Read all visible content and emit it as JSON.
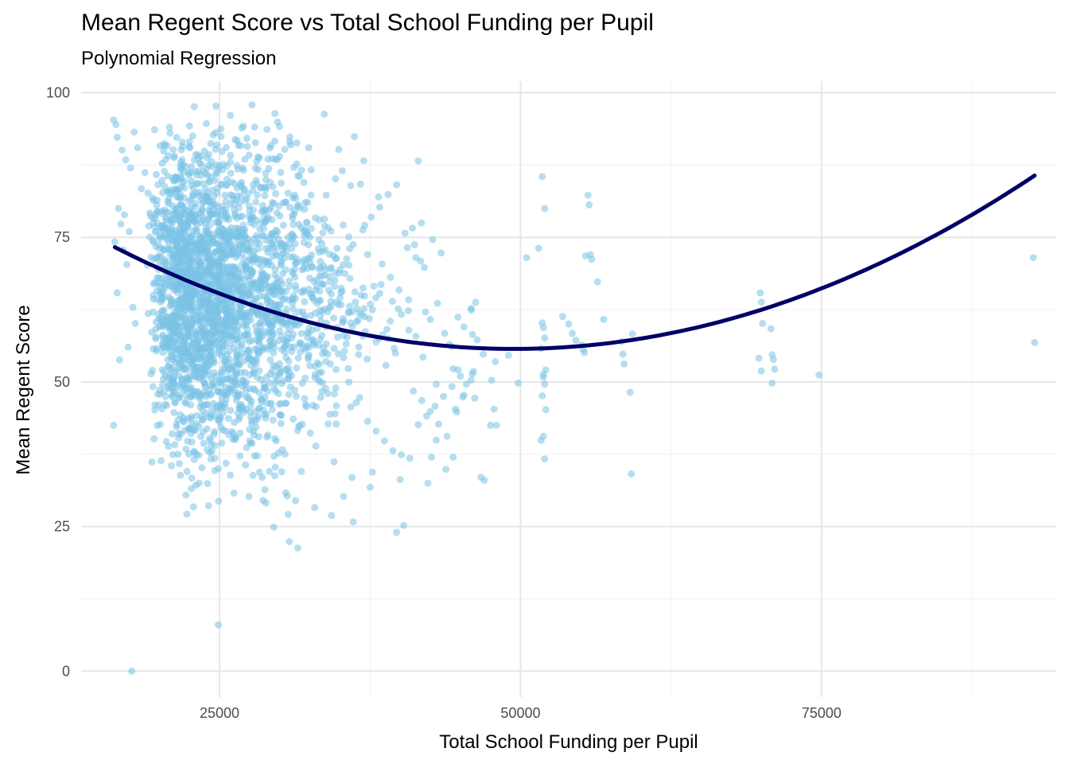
{
  "chart_data": {
    "type": "scatter",
    "title": "Mean Regent Score vs Total School Funding per Pupil",
    "subtitle": "Polynomial Regression",
    "xlabel": "Total School Funding per Pupil",
    "ylabel": "Mean Regent Score",
    "xlim": [
      13500,
      94500
    ],
    "ylim": [
      -4.5,
      102
    ],
    "x_ticks": [
      25000,
      50000,
      75000
    ],
    "x_tick_labels": [
      "25000",
      "50000",
      "75000"
    ],
    "y_ticks": [
      0,
      25,
      50,
      75,
      100
    ],
    "y_tick_labels": [
      "0",
      "25",
      "50",
      "75",
      "100"
    ],
    "grid": true,
    "legend": "none",
    "colors": {
      "points": "#7ac3e6",
      "fit_line": "#000066",
      "grid_major": "#e6e6e6",
      "grid_minor": "#f0f0f0"
    },
    "fit": {
      "type": "polynomial",
      "degree": 2,
      "x_range": [
        16300,
        92700
      ],
      "x": [
        16300,
        25000,
        37000,
        49500,
        60000,
        70000,
        80000,
        92700
      ],
      "y": [
        72.8,
        65.3,
        59.2,
        56.0,
        57.0,
        62.0,
        70.3,
        86.2
      ]
    },
    "series": [
      {
        "type": "scatter",
        "x": [
          16200,
          16400,
          16500,
          16900,
          17200,
          17600,
          17900,
          16600,
          17100,
          16800,
          17500,
          16300,
          17000,
          17300,
          16500,
          17800,
          18000,
          16200,
          17400,
          16700,
          18200,
          18800,
          19500,
          20100,
          20900,
          21600,
          22400,
          23100,
          23900,
          24600,
          25300,
          26100,
          26800,
          27500,
          28300,
          29000,
          29800,
          30500,
          31200,
          32000,
          19000,
          19800,
          20600,
          21300,
          22100,
          22800,
          23600,
          24300,
          25100,
          25800,
          26600,
          27300,
          28100,
          28800,
          29600,
          30300,
          31100,
          31800,
          32600,
          33300,
          20300,
          21100,
          21800,
          22600,
          23300,
          24100,
          24800,
          25600,
          26300,
          27100,
          27800,
          28600,
          29300,
          30100,
          30800,
          31600,
          32300,
          33100,
          33800,
          34600,
          18500,
          19200,
          20000,
          20700,
          21500,
          22200,
          23000,
          23700,
          24500,
          25200,
          26000,
          26700,
          27500,
          28200,
          29000,
          29700,
          30500,
          31200,
          32000,
          32700,
          21000,
          22500,
          24000,
          25500,
          27000,
          28500,
          30000,
          31500,
          33000,
          34500,
          36000,
          37500,
          35200,
          36700,
          38200,
          33500,
          35000,
          36500,
          38000,
          34200,
          19600,
          20400,
          21200,
          22000,
          22700,
          23500,
          24200,
          25000,
          25700,
          26500,
          27200,
          28000,
          28700,
          29500,
          30200,
          31000,
          31700,
          32500,
          33200,
          34000,
          35100,
          35800,
          36400,
          37100,
          37700,
          38300,
          38900,
          39500,
          40100,
          40700,
          41300,
          41900,
          42500,
          43100,
          43700,
          44300,
          44800,
          45300,
          45900,
          46400,
          38500,
          39200,
          39900,
          40600,
          41300,
          42000,
          42700,
          43400,
          44100,
          44800,
          45500,
          46200,
          46900,
          47600,
          36900,
          37600,
          38300,
          39000,
          39700,
          40400,
          41100,
          41800,
          42500,
          43200,
          43900,
          44600,
          45300,
          46000,
          37300,
          38000,
          38700,
          39400,
          40100,
          40800,
          41500,
          42200,
          42900,
          43600,
          44300,
          45000,
          22900,
          24700,
          25900,
          27700,
          29600,
          30900,
          32400,
          33700,
          34900,
          36200,
          24900,
          30800,
          31500,
          29500,
          39700,
          40300,
          34300,
          36100,
          41500,
          21000,
          23300,
          26200,
          28600,
          30700,
          32900,
          35300,
          37700,
          40000,
          42300,
          44400,
          17700,
          24900,
          47800,
          49000,
          49800,
          50500,
          51500,
          51800,
          51900,
          52000,
          51700,
          52100,
          51900,
          52000,
          51800,
          52100,
          51900,
          51700,
          52000,
          51800,
          53500,
          54000,
          54300,
          54600,
          55100,
          55200,
          55300,
          55400,
          55600,
          55700,
          55800,
          55900,
          56400,
          56900,
          58400,
          58500,
          58600,
          59100,
          59200,
          59300,
          69900,
          70000,
          70100,
          70800,
          70900,
          71000,
          71100,
          69800,
          70000,
          70900,
          74800,
          92600,
          92700,
          47900,
          46100,
          45900,
          46000,
          44400,
          43000,
          42100,
          52000,
          51900,
          45200,
          44700,
          48000,
          47500,
          46700,
          47000,
          43800,
          42600
        ],
        "y": [
          95.3,
          94.5,
          92.3,
          90.1,
          88.4,
          87.0,
          93.2,
          80.0,
          78.9,
          77.3,
          76.0,
          74.2,
          72.8,
          70.3,
          65.4,
          62.9,
          60.1,
          42.5,
          56.0,
          53.8,
          90.5,
          86.2,
          81.4,
          76.8,
          72.1,
          67.5,
          62.9,
          58.3,
          53.8,
          49.2,
          44.7,
          40.1,
          45.6,
          51.2,
          56.8,
          62.3,
          67.9,
          73.4,
          79.0,
          84.5,
          70.2,
          65.8,
          61.3,
          56.9,
          52.4,
          48.0,
          43.5,
          39.1,
          43.8,
          48.6,
          53.3,
          58.1,
          62.8,
          67.6,
          72.3,
          77.1,
          81.8,
          86.6,
          82.3,
          78.0,
          55.1,
          59.7,
          64.3,
          68.9,
          73.5,
          78.1,
          82.7,
          87.3,
          91.9,
          88.5,
          84.1,
          79.7,
          75.3,
          70.9,
          66.5,
          62.1,
          57.7,
          53.3,
          48.9,
          44.5,
          83.4,
          79.2,
          75.0,
          70.8,
          66.6,
          62.4,
          58.2,
          54.0,
          49.8,
          45.6,
          41.4,
          37.2,
          39.8,
          44.1,
          48.4,
          52.7,
          57.0,
          61.3,
          65.6,
          69.9,
          60.5,
          57.8,
          55.1,
          52.4,
          49.7,
          47.0,
          44.3,
          41.6,
          38.9,
          36.2,
          33.5,
          31.8,
          86.5,
          84.2,
          82.0,
          68.3,
          64.5,
          60.7,
          56.9,
          53.1,
          93.6,
          91.2,
          88.8,
          86.4,
          84.0,
          81.6,
          79.2,
          76.8,
          74.4,
          72.0,
          69.6,
          67.2,
          64.8,
          62.4,
          60.0,
          57.6,
          55.2,
          52.8,
          50.4,
          48.0,
          66.2,
          63.1,
          60.4,
          58.7,
          62.5,
          65.3,
          59.1,
          55.8,
          61.7,
          64.2,
          57.9,
          54.3,
          60.8,
          63.6,
          58.4,
          56.1,
          61.2,
          59.5,
          62.7,
          57.3,
          70.4,
          68.1,
          65.9,
          73.2,
          71.5,
          69.8,
          74.6,
          72.3,
          56.5,
          52.1,
          49.6,
          47.2,
          54.8,
          50.3,
          76.3,
          78.5,
          80.2,
          82.4,
          84.1,
          75.7,
          48.4,
          46.8,
          44.9,
          42.7,
          40.6,
          45.3,
          47.7,
          51.4,
          43.2,
          41.5,
          39.8,
          38.1,
          37.4,
          36.8,
          42.6,
          44.1,
          45.8,
          47.5,
          49.2,
          51.0,
          97.6,
          97.7,
          96.1,
          97.9,
          96.4,
          91.0,
          90.5,
          96.3,
          90.2,
          92.4,
          8.0,
          22.4,
          21.3,
          24.9,
          24.0,
          25.2,
          26.9,
          25.8,
          88.2,
          35.5,
          32.5,
          30.8,
          29.5,
          27.1,
          28.3,
          30.2,
          34.4,
          33.1,
          32.5,
          37.0,
          0.0,
          35.0,
          45.3,
          54.6,
          49.8,
          71.5,
          73.1,
          60.2,
          59.4,
          57.6,
          55.8,
          52.1,
          51.3,
          49.6,
          47.6,
          45.2,
          40.6,
          39.9,
          36.7,
          85.5,
          61.3,
          60.0,
          58.4,
          57.2,
          56.4,
          55.6,
          55.1,
          71.8,
          82.3,
          80.6,
          72.0,
          71.2,
          67.3,
          60.8,
          57.0,
          54.8,
          53.1,
          48.2,
          34.1,
          58.3,
          65.4,
          63.8,
          60.1,
          59.2,
          54.7,
          53.9,
          52.2,
          54.1,
          51.9,
          49.8,
          51.2,
          71.5,
          56.8,
          53.5,
          51.8,
          50.3,
          58.2,
          52.3,
          49.6,
          62.1,
          80.0,
          50.8,
          47.4,
          44.8,
          42.5,
          42.5,
          33.5,
          33.0,
          34.9,
          37.0
        ]
      }
    ]
  }
}
